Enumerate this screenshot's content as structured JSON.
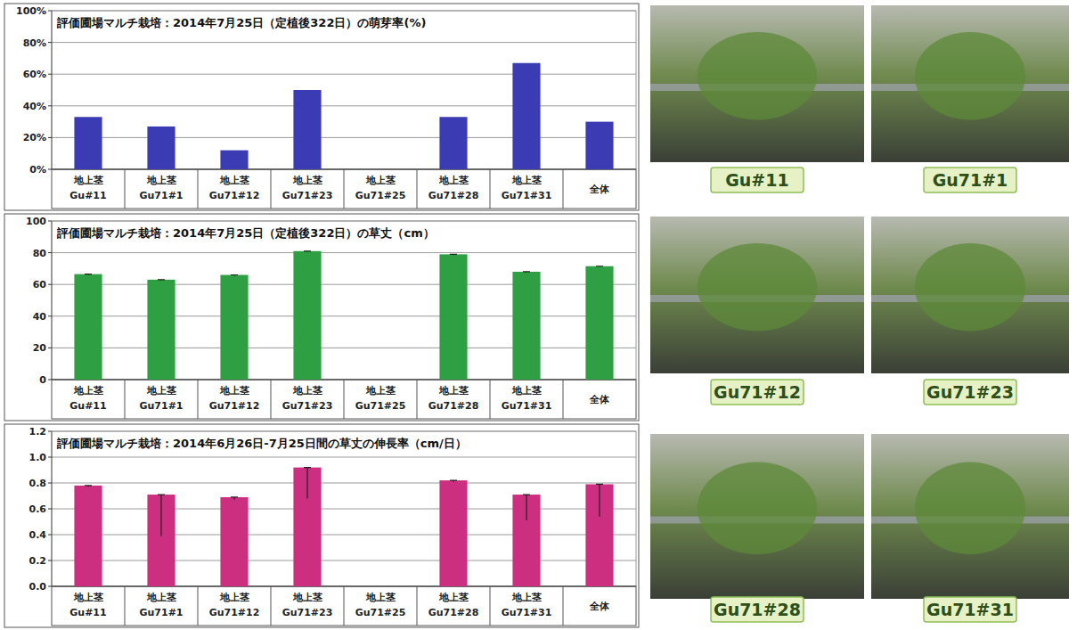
{
  "chart_data": [
    {
      "type": "bar",
      "title": "評価圃場マルチ栽培：2014年7月25日（定植後322日）の萌芽率(%)",
      "categories": [
        "地上茎\nGu#11",
        "地上茎\nGu71#1",
        "地上茎\nGu71#12",
        "地上茎\nGu71#23",
        "地上茎\nGu71#25",
        "地上茎\nGu71#28",
        "地上茎\nGu71#31",
        "全体"
      ],
      "values": [
        33,
        27,
        12,
        50,
        0,
        33,
        67,
        30
      ],
      "color": "#3b3bb3",
      "ylim": [
        0,
        100
      ],
      "yticks": [
        {
          "value": 0,
          "label": "0%"
        },
        {
          "value": 20,
          "label": "20%"
        },
        {
          "value": 40,
          "label": "40%"
        },
        {
          "value": 60,
          "label": "60%"
        },
        {
          "value": 80,
          "label": "80%"
        },
        {
          "value": 100,
          "label": "100%"
        }
      ],
      "grid": true
    },
    {
      "type": "bar",
      "title": "評価圃場マルチ栽培：2014年7月25日（定植後322日）の草丈（cm）",
      "categories": [
        "地上茎\nGu#11",
        "地上茎\nGu71#1",
        "地上茎\nGu71#12",
        "地上茎\nGu71#23",
        "地上茎\nGu71#25",
        "地上茎\nGu71#28",
        "地上茎\nGu71#31",
        "全体"
      ],
      "values": [
        66.5,
        63,
        66,
        81,
        null,
        79,
        68,
        71.5
      ],
      "errors": [
        0.5,
        0.5,
        0.5,
        0.5,
        null,
        0.5,
        0.5,
        0.5
      ],
      "color": "#2ea043",
      "ylim": [
        0,
        100
      ],
      "yticks": [
        0,
        20,
        40,
        60,
        80,
        100
      ],
      "grid": true
    },
    {
      "type": "bar",
      "title": "評価圃場マルチ栽培：2014年6月26日-7月25日間の草丈の伸長率（cm/日）",
      "categories": [
        "地上茎\nGu#11",
        "地上茎\nGu71#1",
        "地上茎\nGu71#12",
        "地上茎\nGu71#23",
        "地上茎\nGu71#25",
        "地上茎\nGu71#28",
        "地上茎\nGu71#31",
        "全体"
      ],
      "values": [
        0.78,
        0.71,
        0.69,
        0.92,
        null,
        0.82,
        0.71,
        0.79
      ],
      "errors": [
        0.01,
        0.32,
        0.02,
        0.24,
        null,
        0.01,
        0.2,
        0.25
      ],
      "color": "#cc2f7f",
      "ylim": [
        0,
        1.2
      ],
      "yticks": [
        {
          "value": 0,
          "label": "0.0"
        },
        0.2,
        0.4,
        0.6,
        0.8,
        {
          "value": 1,
          "label": "1.0"
        },
        1.2
      ],
      "grid": true
    }
  ],
  "photos": {
    "labels": [
      "Gu#11",
      "Gu71#1",
      "Gu71#12",
      "Gu71#23",
      "Gu71#28",
      "Gu71#31"
    ]
  }
}
